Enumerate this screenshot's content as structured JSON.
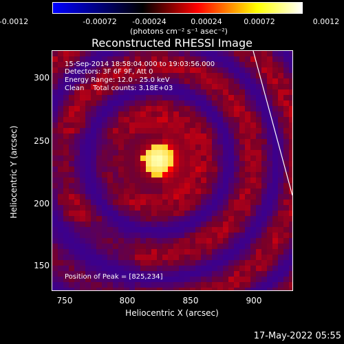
{
  "colorbar": {
    "ticks": [
      "-0.0012",
      "-0.00072",
      "-0.00024",
      "0.00024",
      "0.00072",
      "0.0012"
    ],
    "units_label": "(photons cm⁻² s⁻¹ asec⁻²)",
    "colors": [
      "#0000ff",
      "#000000",
      "#ff0000",
      "#ffff00",
      "#ffffff"
    ]
  },
  "title": "Reconstructed RHESSI Image",
  "info": {
    "time_range": "15-Sep-2014 18:58:04.000 to 19:03:56.000",
    "detectors": "Detectors: 3F 6F 9F, Att 0",
    "energy": "Energy Range: 12.0 - 25.0 keV",
    "clean": "Clean    Total counts: 3.18E+03",
    "peak": "Position of Peak = [825,234]"
  },
  "axes": {
    "xlabel": "Heliocentric X (arcsec)",
    "ylabel": "Heliocentric Y (arcsec)",
    "xticks": [
      "750",
      "800",
      "850",
      "900"
    ],
    "yticks": [
      "150",
      "200",
      "250",
      "300"
    ],
    "xrange": [
      740,
      933
    ],
    "yrange": [
      129,
      322
    ]
  },
  "peak": {
    "x": 825,
    "y": 234
  },
  "footer_date": "17-May-2022 05:55"
}
